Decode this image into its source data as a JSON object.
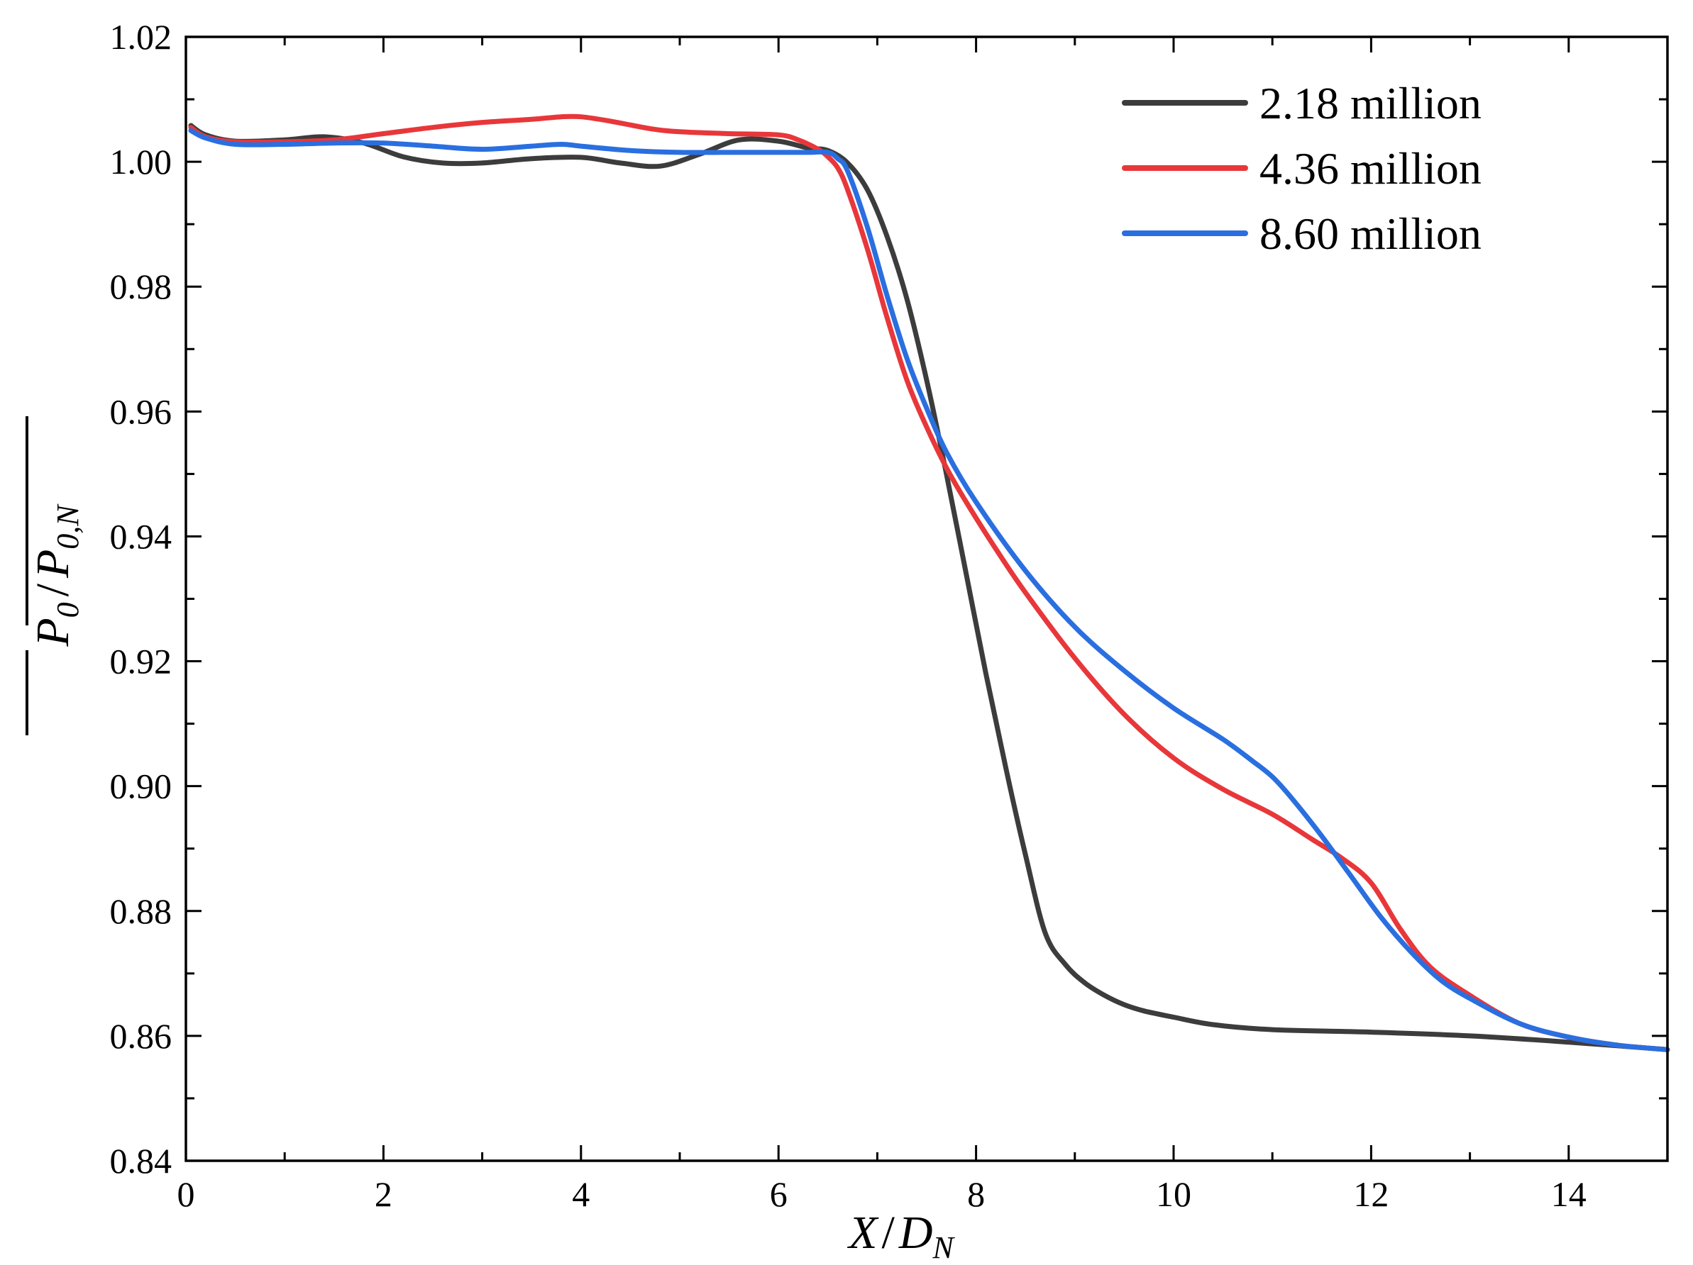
{
  "chart_data": {
    "type": "line",
    "title": "",
    "xlabel": {
      "main": "X",
      "slash": "/",
      "denominator": "D",
      "denominator_sub": "N"
    },
    "ylabel": {
      "numerator": "P",
      "numerator_sub": "0",
      "slash": "/",
      "denominator": "P",
      "denominator_sub": "0,N",
      "overline": true
    },
    "xlim": [
      0,
      15
    ],
    "ylim": [
      0.84,
      1.02
    ],
    "xticks": [
      0,
      2,
      4,
      6,
      8,
      10,
      12,
      14
    ],
    "xtick_labels": [
      "0",
      "2",
      "4",
      "6",
      "8",
      "10",
      "12",
      "14"
    ],
    "yticks": [
      0.84,
      0.86,
      0.88,
      0.9,
      0.92,
      0.94,
      0.96,
      0.98,
      1.0,
      1.02
    ],
    "ytick_labels": [
      "0.84",
      "0.86",
      "0.88",
      "0.90",
      "0.92",
      "0.94",
      "0.96",
      "0.98",
      "1.00",
      "1.02"
    ],
    "grid": false,
    "legend_position": "top-right",
    "series": [
      {
        "name": "2.18 million",
        "color": "#3c3c3c",
        "x": [
          0.05,
          0.2,
          0.5,
          1.0,
          1.4,
          1.8,
          2.2,
          2.6,
          3.0,
          3.5,
          4.0,
          4.4,
          4.8,
          5.2,
          5.6,
          6.0,
          6.3,
          6.5,
          6.7,
          6.9,
          7.1,
          7.3,
          7.5,
          7.7,
          7.9,
          8.1,
          8.3,
          8.5,
          8.7,
          8.9,
          9.1,
          9.3,
          9.5,
          9.7,
          10.0,
          10.4,
          11.0,
          12.0,
          13.0,
          14.0,
          15.0
        ],
        "y": [
          1.0058,
          1.0043,
          1.0033,
          1.0035,
          1.004,
          1.003,
          1.0008,
          0.9998,
          0.9998,
          1.0005,
          1.0007,
          0.9998,
          0.9993,
          1.0012,
          1.0035,
          1.0033,
          1.0022,
          1.0018,
          0.9998,
          0.9955,
          0.988,
          0.978,
          0.965,
          0.95,
          0.934,
          0.918,
          0.903,
          0.889,
          0.8765,
          0.8715,
          0.8685,
          0.8665,
          0.865,
          0.864,
          0.863,
          0.8618,
          0.861,
          0.8606,
          0.86,
          0.859,
          0.8578
        ]
      },
      {
        "name": "4.36 million",
        "color": "#e8373a",
        "x": [
          0.05,
          0.2,
          0.5,
          1.0,
          1.5,
          2.0,
          2.5,
          3.0,
          3.5,
          3.8,
          4.0,
          4.3,
          4.7,
          5.0,
          5.5,
          6.0,
          6.2,
          6.4,
          6.5,
          6.6,
          6.7,
          6.9,
          7.1,
          7.3,
          7.5,
          7.7,
          7.9,
          8.2,
          8.5,
          9.0,
          9.5,
          10.0,
          10.5,
          11.0,
          11.4,
          11.7,
          12.0,
          12.3,
          12.6,
          13.0,
          13.5,
          14.0,
          14.5,
          15.0
        ],
        "y": [
          1.0055,
          1.004,
          1.0032,
          1.0032,
          1.0035,
          1.0045,
          1.0055,
          1.0063,
          1.0068,
          1.0072,
          1.0072,
          1.0065,
          1.0053,
          1.0048,
          1.0045,
          1.0043,
          1.0035,
          1.002,
          1.0008,
          0.999,
          0.9955,
          0.986,
          0.975,
          0.965,
          0.9575,
          0.951,
          0.9455,
          0.938,
          0.931,
          0.9205,
          0.9115,
          0.9045,
          0.8995,
          0.8955,
          0.8915,
          0.8885,
          0.8845,
          0.877,
          0.871,
          0.8665,
          0.862,
          0.8598,
          0.8585,
          0.8578
        ]
      },
      {
        "name": "8.60 million",
        "color": "#2a6fe0",
        "x": [
          0.05,
          0.2,
          0.5,
          1.0,
          1.5,
          2.0,
          2.5,
          3.0,
          3.5,
          3.8,
          4.0,
          4.5,
          5.0,
          5.5,
          6.0,
          6.3,
          6.5,
          6.6,
          6.7,
          6.9,
          7.1,
          7.3,
          7.5,
          7.7,
          8.0,
          8.5,
          9.0,
          9.5,
          10.0,
          10.5,
          10.8,
          11.0,
          11.2,
          11.5,
          11.8,
          12.1,
          12.4,
          12.7,
          13.0,
          13.5,
          14.0,
          14.5,
          15.0
        ],
        "y": [
          1.005,
          1.0038,
          1.0028,
          1.0028,
          1.003,
          1.003,
          1.0025,
          1.002,
          1.0025,
          1.0028,
          1.0025,
          1.0018,
          1.0015,
          1.0015,
          1.0015,
          1.0015,
          1.0015,
          1.0005,
          0.9985,
          0.9895,
          0.9785,
          0.9685,
          0.9605,
          0.9535,
          0.9455,
          0.9345,
          0.9255,
          0.9185,
          0.9125,
          0.9075,
          0.904,
          0.9015,
          0.898,
          0.892,
          0.8855,
          0.879,
          0.8735,
          0.869,
          0.866,
          0.862,
          0.8598,
          0.8585,
          0.8578
        ]
      }
    ]
  }
}
